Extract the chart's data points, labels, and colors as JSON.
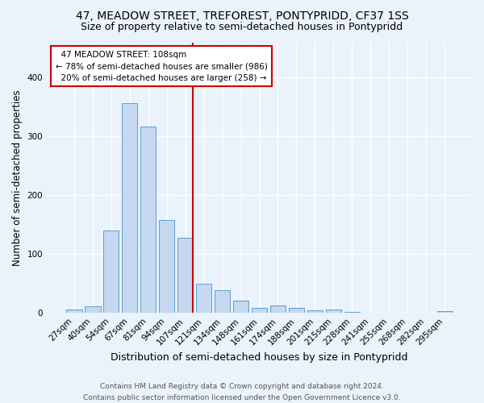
{
  "title1": "47, MEADOW STREET, TREFOREST, PONTYPRIDD, CF37 1SS",
  "title2": "Size of property relative to semi-detached houses in Pontypridd",
  "xlabel": "Distribution of semi-detached houses by size in Pontypridd",
  "ylabel": "Number of semi-detached properties",
  "categories": [
    "27sqm",
    "40sqm",
    "54sqm",
    "67sqm",
    "81sqm",
    "94sqm",
    "107sqm",
    "121sqm",
    "134sqm",
    "148sqm",
    "161sqm",
    "174sqm",
    "188sqm",
    "201sqm",
    "215sqm",
    "228sqm",
    "241sqm",
    "255sqm",
    "268sqm",
    "282sqm",
    "295sqm"
  ],
  "values": [
    6,
    12,
    140,
    357,
    317,
    158,
    128,
    50,
    39,
    21,
    9,
    13,
    8,
    5,
    6,
    2,
    1,
    1,
    1,
    1,
    3
  ],
  "bar_color": "#c5d8f0",
  "bar_edge_color": "#5a9fd4",
  "annotation_label": "47 MEADOW STREET: 108sqm",
  "annotation_smaller_pct": "78%",
  "annotation_smaller_n": 986,
  "annotation_larger_pct": "20%",
  "annotation_larger_n": 258,
  "annotation_box_color": "#ffffff",
  "annotation_box_edge_color": "#cc0000",
  "vline_color": "#cc0000",
  "footnote1": "Contains HM Land Registry data © Crown copyright and database right 2024.",
  "footnote2": "Contains public sector information licensed under the Open Government Licence v3.0.",
  "bg_color": "#eaf2fb",
  "ylim": [
    0,
    460
  ],
  "grid_color": "#ffffff",
  "title1_fontsize": 10,
  "title2_fontsize": 9,
  "xlabel_fontsize": 9,
  "ylabel_fontsize": 8.5,
  "tick_fontsize": 7.5,
  "annot_fontsize": 7.5,
  "footnote_fontsize": 6.5
}
